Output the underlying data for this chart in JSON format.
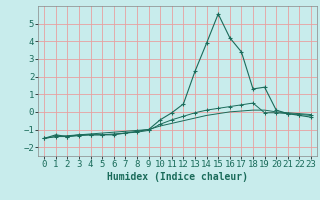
{
  "xlabel": "Humidex (Indice chaleur)",
  "bg_color": "#c8ecec",
  "grid_color": "#e8a0a0",
  "line_color": "#1a6b5a",
  "spine_color": "#888888",
  "xlim": [
    -0.5,
    23.5
  ],
  "ylim": [
    -2.5,
    6.0
  ],
  "x_ticks": [
    0,
    1,
    2,
    3,
    4,
    5,
    6,
    7,
    8,
    9,
    10,
    11,
    12,
    13,
    14,
    15,
    16,
    17,
    18,
    19,
    20,
    21,
    22,
    23
  ],
  "y_ticks": [
    -2,
    -1,
    0,
    1,
    2,
    3,
    4,
    5
  ],
  "humidex_x": [
    0,
    1,
    2,
    3,
    4,
    5,
    6,
    7,
    8,
    9,
    10,
    11,
    12,
    13,
    14,
    15,
    16,
    17,
    18,
    19,
    20,
    21,
    22,
    23
  ],
  "curve1_y": [
    -1.5,
    -1.3,
    -1.4,
    -1.3,
    -1.3,
    -1.3,
    -1.3,
    -1.2,
    -1.1,
    -1.0,
    -0.45,
    -0.05,
    0.45,
    2.3,
    3.9,
    5.55,
    4.2,
    3.4,
    1.3,
    1.4,
    0.1,
    -0.1,
    -0.2,
    -0.3
  ],
  "curve2_y": [
    -1.5,
    -1.4,
    -1.4,
    -1.35,
    -1.3,
    -1.3,
    -1.25,
    -1.2,
    -1.15,
    -1.05,
    -0.7,
    -0.45,
    -0.25,
    -0.05,
    0.1,
    0.2,
    0.3,
    0.4,
    0.5,
    -0.05,
    -0.05,
    -0.1,
    -0.15,
    -0.2
  ],
  "curve3_y": [
    -1.5,
    -1.4,
    -1.35,
    -1.3,
    -1.25,
    -1.2,
    -1.15,
    -1.1,
    -1.05,
    -1.0,
    -0.8,
    -0.65,
    -0.5,
    -0.35,
    -0.2,
    -0.1,
    0.0,
    0.05,
    0.1,
    0.1,
    0.0,
    -0.05,
    -0.1,
    -0.15
  ],
  "tick_fontsize": 6.5,
  "xlabel_fontsize": 7.0
}
